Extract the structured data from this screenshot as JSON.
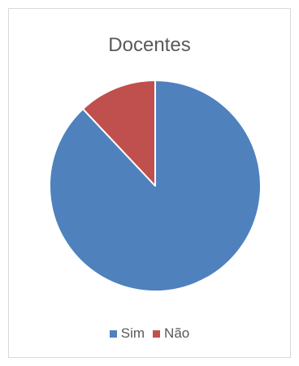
{
  "chart_data": {
    "type": "pie",
    "title": "Docentes",
    "categories": [
      "Sim",
      "Não"
    ],
    "values": [
      88,
      12
    ],
    "colors": [
      "#4f81bd",
      "#c0504d"
    ],
    "legend_position": "bottom"
  }
}
